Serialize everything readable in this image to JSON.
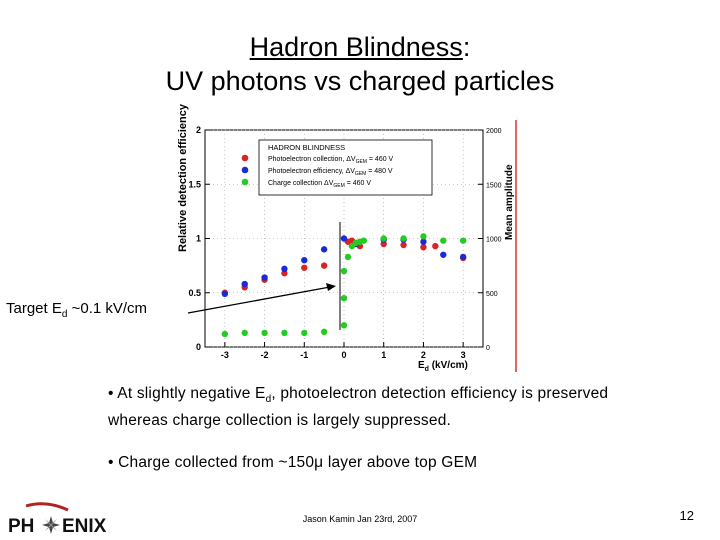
{
  "slide": {
    "title_line1_underlined": "Hadron Blindness",
    "title_line1_rest": ":",
    "title_line2": "UV photons vs charged particles",
    "target_note_prefix": "Target E",
    "target_note_sub": "d",
    "target_note_suffix": " ~0.1 kV/cm",
    "bullet1_prefix": "• At slightly negative E",
    "bullet1_sub": "d",
    "bullet1_suffix": ", photoelectron detection efficiency is preserved whereas charge collection is largely suppressed.",
    "bullet2": "• Charge collected from ~150μ layer above top GEM",
    "footer": "Jason Kamin Jan 23rd, 2007",
    "page_number": "12",
    "logo_left": "PH",
    "logo_right": "ENIX"
  },
  "chart_data": {
    "type": "scatter",
    "xlabel": "E_d (kV/cm)",
    "ylabel_left": "Relative detection efficiency",
    "ylabel_right": "Mean amplitude",
    "xlim": [
      -3.5,
      3.5
    ],
    "ylim_left": [
      0,
      2
    ],
    "ylim_right": [
      0,
      2000
    ],
    "x_ticks": [
      "-3",
      "-2",
      "-1",
      "0",
      "1",
      "2",
      "3"
    ],
    "y_ticks_left": [
      "0",
      "0.5",
      "1",
      "1.5",
      "2"
    ],
    "y_ticks_right": [
      "0",
      "500",
      "1000",
      "1500",
      "2000"
    ],
    "legend_title": "HADRON BLINDNESS",
    "legend_entries": [
      {
        "label": "Photoelectron collection, ΔV",
        "sub": "GEM",
        "value": " = 460 V",
        "color": "#dd2222"
      },
      {
        "label": "Photoelectron efficiency, ΔV",
        "sub": "GEM",
        "value": " = 480 V",
        "color": "#1a2ad8"
      },
      {
        "label": "Charge collection ΔV",
        "sub": "GEM",
        "value": " = 460 V",
        "color": "#22cc22"
      }
    ],
    "series": [
      {
        "name": "Photoelectron collection",
        "color": "#dd2222",
        "x": [
          -3,
          -2.5,
          -2,
          -1.5,
          -1,
          -0.5,
          0.1,
          0.2,
          0.4,
          1,
          1.5,
          2,
          2.3,
          3
        ],
        "y": [
          0.5,
          0.55,
          0.62,
          0.68,
          0.73,
          0.75,
          0.97,
          0.98,
          0.93,
          0.95,
          0.94,
          0.92,
          0.93,
          0.82
        ]
      },
      {
        "name": "Photoelectron efficiency",
        "color": "#1a2ad8",
        "x": [
          -3,
          -2.5,
          -2,
          -1.5,
          -1,
          -0.5,
          0,
          0.3,
          1,
          1.5,
          2,
          2.5,
          3
        ],
        "y": [
          0.49,
          0.58,
          0.64,
          0.72,
          0.8,
          0.9,
          1.0,
          0.95,
          0.99,
          0.99,
          0.97,
          0.85,
          0.83
        ]
      },
      {
        "name": "Charge collection",
        "color": "#22cc22",
        "x": [
          -3,
          -2.5,
          -2,
          -1.5,
          -1,
          -0.5,
          0,
          0,
          0,
          0.1,
          0.2,
          0.3,
          0.4,
          0.5,
          1,
          1.5,
          2,
          2.5,
          3
        ],
        "y": [
          0.12,
          0.13,
          0.13,
          0.13,
          0.13,
          0.14,
          0.2,
          0.45,
          0.7,
          0.83,
          0.93,
          0.96,
          0.97,
          0.98,
          1.0,
          1.0,
          1.02,
          0.98,
          0.98
        ]
      }
    ]
  }
}
